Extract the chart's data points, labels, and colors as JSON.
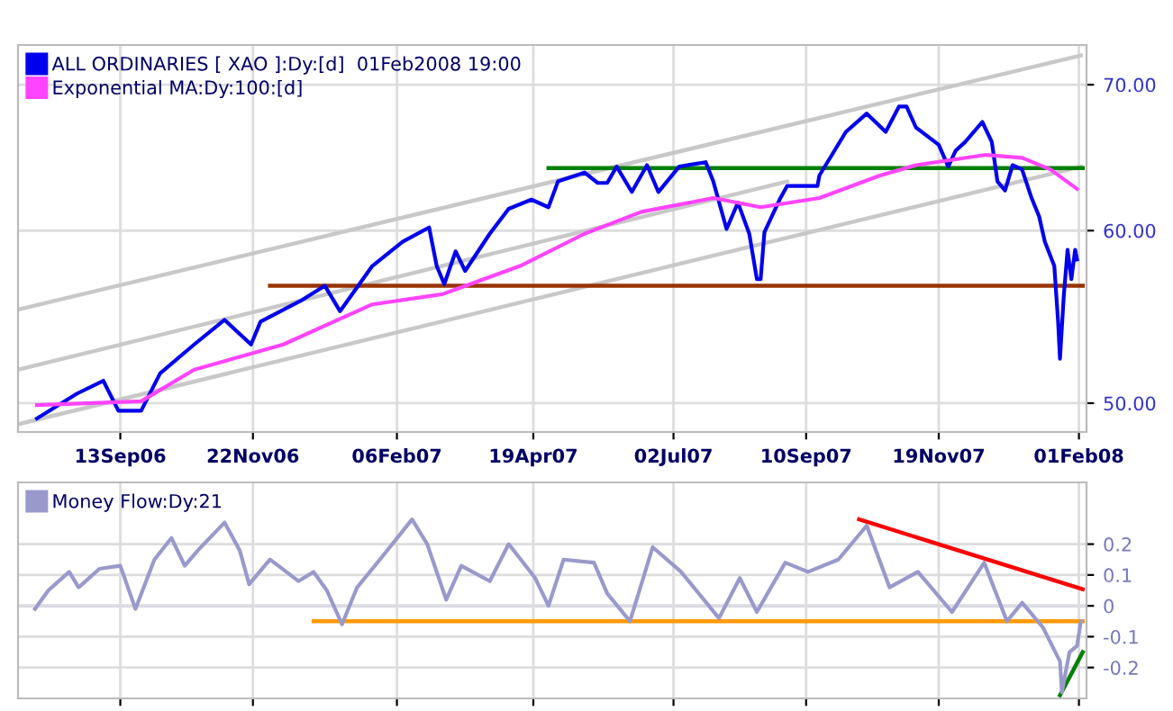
{
  "chart_data": [
    {
      "type": "line",
      "log": true,
      "grid": true,
      "legend": "top left",
      "xlim": [
        "2006-07-21",
        "2008-02-05"
      ],
      "xticks": [
        {
          "value": "2006-09-13",
          "label": "13Sep06"
        },
        {
          "value": "2006-11-22",
          "label": "22Nov06"
        },
        {
          "value": "2007-02-06",
          "label": "06Feb07"
        },
        {
          "value": "2007-04-19",
          "label": "19Apr07"
        },
        {
          "value": "2007-07-02",
          "label": "02Jul07"
        },
        {
          "value": "2007-09-10",
          "label": "10Sep07"
        },
        {
          "value": "2007-11-19",
          "label": "19Nov07"
        },
        {
          "value": "2008-02-01",
          "label": "01Feb08"
        }
      ],
      "ylim": [
        48.5,
        73
      ],
      "yticks": [
        {
          "value": 50,
          "label": "50.00"
        },
        {
          "value": 60,
          "label": "60.00"
        },
        {
          "value": 70,
          "label": "70.00"
        }
      ],
      "series": [
        {
          "color": "#c8c8c8",
          "x": [
            "2006-07-21",
            "2008-02-02"
          ],
          "values": [
            55.2,
            72.2
          ]
        },
        {
          "color": "#c8c8c8",
          "x": [
            "2006-07-21",
            "2007-08-31"
          ],
          "values": [
            51.8,
            63.2
          ]
        },
        {
          "color": "#c8c8c8",
          "x": [
            "2006-07-21",
            "2008-02-02"
          ],
          "values": [
            48.9,
            64.2
          ]
        },
        {
          "color": "#008000",
          "x": [
            "2007-04-27",
            "2008-02-03"
          ],
          "values": [
            64.1,
            64.1
          ]
        },
        {
          "color": "#993300",
          "x": [
            "2006-12-01",
            "2008-02-03"
          ],
          "values": [
            56.6,
            56.6
          ]
        },
        {
          "name": "ALL ORDINARIES [ XAO ]:Dy:[d]  01Feb2008 19:00",
          "color": "#0000ee",
          "x": [
            "2006-07-31",
            "2006-08-21",
            "2006-09-04",
            "2006-09-12",
            "2006-09-24",
            "2006-10-04",
            "2006-10-22",
            "2006-11-07",
            "2006-11-21",
            "2006-11-26",
            "2006-12-17",
            "2006-12-30",
            "2007-01-07",
            "2007-01-24",
            "2007-02-09",
            "2007-02-23",
            "2007-02-27",
            "2007-03-03",
            "2007-03-09",
            "2007-03-14",
            "2007-03-27",
            "2007-04-06",
            "2007-04-18",
            "2007-04-27",
            "2007-05-02",
            "2007-05-16",
            "2007-05-23",
            "2007-05-28",
            "2007-06-02",
            "2007-06-10",
            "2007-06-18",
            "2007-06-24",
            "2007-07-05",
            "2007-07-19",
            "2007-07-23",
            "2007-07-30",
            "2007-08-05",
            "2007-08-11",
            "2007-08-15",
            "2007-08-17",
            "2007-08-19",
            "2007-08-27",
            "2007-08-31",
            "2007-09-16",
            "2007-09-17",
            "2007-10-01",
            "2007-10-12",
            "2007-10-22",
            "2007-10-29",
            "2007-11-02",
            "2007-11-07",
            "2007-11-19",
            "2007-11-24",
            "2007-11-28",
            "2007-12-03",
            "2007-12-12",
            "2007-12-17",
            "2007-12-20",
            "2007-12-24",
            "2007-12-28",
            "2008-01-02",
            "2008-01-07",
            "2008-01-11",
            "2008-01-14",
            "2008-01-19",
            "2008-01-21",
            "2008-01-22",
            "2008-01-24",
            "2008-01-26",
            "2008-01-28",
            "2008-01-30",
            "2008-01-31"
          ],
          "values": [
            49.2,
            50.5,
            51.2,
            49.6,
            49.6,
            51.6,
            53.2,
            54.6,
            53.2,
            54.5,
            55.7,
            56.6,
            55.1,
            57.8,
            59.3,
            60.2,
            57.8,
            56.7,
            58.7,
            57.5,
            59.8,
            61.4,
            62.0,
            61.5,
            63.2,
            63.8,
            63.1,
            63.1,
            64.2,
            62.5,
            64.3,
            62.5,
            64.2,
            64.5,
            63.2,
            60.1,
            61.8,
            59.8,
            57.0,
            57.0,
            59.9,
            62.0,
            62.9,
            62.9,
            63.6,
            66.6,
            67.9,
            66.6,
            68.4,
            68.4,
            66.9,
            65.7,
            64.2,
            65.3,
            65.9,
            67.3,
            65.9,
            63.2,
            62.6,
            64.3,
            64.0,
            62.1,
            60.9,
            59.3,
            57.8,
            54.5,
            52.4,
            56.0,
            58.8,
            57.0,
            58.8,
            58.2
          ]
        },
        {
          "name": "Exponential MA:Dy:100:[d]",
          "color": "#ff44ff",
          "x": [
            "2006-07-31",
            "2006-09-24",
            "2006-10-22",
            "2006-12-08",
            "2007-01-24",
            "2007-03-02",
            "2007-04-12",
            "2007-05-16",
            "2007-06-15",
            "2007-07-23",
            "2007-08-17",
            "2007-09-17",
            "2007-10-19",
            "2007-11-07",
            "2007-12-14",
            "2008-01-02",
            "2008-01-17",
            "2008-01-31"
          ],
          "values": [
            49.9,
            50.1,
            51.8,
            53.2,
            55.5,
            56.1,
            57.8,
            59.8,
            61.2,
            62.1,
            61.5,
            62.1,
            63.6,
            64.3,
            65.0,
            64.8,
            64.0,
            62.7
          ]
        }
      ]
    },
    {
      "type": "line",
      "grid": true,
      "legend": "top left",
      "tick_labels": "y",
      "xlim": [
        "2006-07-21",
        "2008-02-05"
      ],
      "xticks": [
        {
          "value": "2006-09-13",
          "label": null
        },
        {
          "value": "2006-11-22",
          "label": null
        },
        {
          "value": "2007-02-06",
          "label": null
        },
        {
          "value": "2007-04-19",
          "label": null
        },
        {
          "value": "2007-07-02",
          "label": null
        },
        {
          "value": "2007-09-10",
          "label": null
        },
        {
          "value": "2007-11-19",
          "label": null
        },
        {
          "value": "2008-02-01",
          "label": null
        }
      ],
      "ylim": [
        -0.3,
        0.4
      ],
      "yticks": [
        {
          "value": -0.2,
          "label": "-0.2"
        },
        {
          "value": -0.1,
          "label": "-0.1"
        },
        0,
        0.1,
        0.2
      ],
      "ref_lines": [
        {
          "axis": "y",
          "value": 0,
          "color": "#9999dd"
        }
      ],
      "series": [
        {
          "name": "Money Flow:Dy:21",
          "color": "#9999cc",
          "x": [
            "2006-07-30",
            "2006-08-06",
            "2006-08-17",
            "2006-08-22",
            "2006-09-02",
            "2006-09-13",
            "2006-09-21",
            "2006-10-01",
            "2006-10-10",
            "2006-10-17",
            "2006-10-24",
            "2006-11-07",
            "2006-11-15",
            "2006-11-20",
            "2006-12-01",
            "2006-12-16",
            "2006-12-24",
            "2006-12-31",
            "2007-01-08",
            "2007-01-16",
            "2007-01-28",
            "2007-02-14",
            "2007-02-22",
            "2007-03-04",
            "2007-03-12",
            "2007-03-27",
            "2007-04-06",
            "2007-04-20",
            "2007-04-27",
            "2007-05-05",
            "2007-05-21",
            "2007-05-28",
            "2007-06-09",
            "2007-06-21",
            "2007-07-06",
            "2007-07-26",
            "2007-08-06",
            "2007-08-15",
            "2007-08-30",
            "2007-09-11",
            "2007-09-27",
            "2007-10-12",
            "2007-10-24",
            "2007-11-08",
            "2007-11-26",
            "2007-12-13",
            "2007-12-25",
            "2008-01-02",
            "2008-01-13",
            "2008-01-22",
            "2008-01-23",
            "2008-01-27",
            "2008-01-31",
            "2008-02-02"
          ],
          "values": [
            -0.01,
            0.05,
            0.11,
            0.06,
            0.12,
            0.13,
            -0.01,
            0.15,
            0.22,
            0.13,
            0.18,
            0.27,
            0.18,
            0.07,
            0.15,
            0.08,
            0.11,
            0.05,
            -0.06,
            0.06,
            0.15,
            0.28,
            0.2,
            0.02,
            0.13,
            0.08,
            0.2,
            0.09,
            0,
            0.15,
            0.14,
            0.04,
            -0.05,
            0.19,
            0.11,
            -0.04,
            0.09,
            -0.02,
            0.14,
            0.11,
            0.15,
            0.26,
            0.06,
            0.11,
            -0.02,
            0.14,
            -0.05,
            0.01,
            -0.07,
            -0.18,
            -0.28,
            -0.15,
            -0.13,
            -0.05
          ]
        },
        {
          "color": "#ff0000",
          "x": [
            "2007-10-08",
            "2008-02-03"
          ],
          "values": [
            0.28,
            0.054
          ]
        },
        {
          "color": "#ff9900",
          "x": [
            "2006-12-24",
            "2008-02-03"
          ],
          "values": [
            -0.05,
            -0.05
          ]
        },
        {
          "color": "#008000",
          "x": [
            "2008-01-22",
            "2008-02-03"
          ],
          "values": [
            -0.29,
            -0.15
          ]
        }
      ]
    }
  ]
}
